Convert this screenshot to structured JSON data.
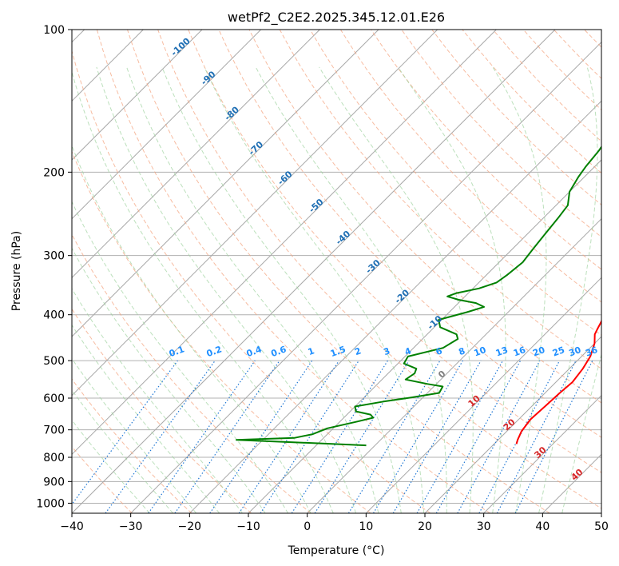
{
  "chart_data": {
    "type": "line",
    "title": "wetPf2_C2E2.2025.345.12.01.E26",
    "xlabel": "Temperature (°C)",
    "ylabel": "Pressure (hPa)",
    "xlim": [
      -40,
      50
    ],
    "ylim": [
      1050,
      100
    ],
    "y_scale": "log",
    "grid": true,
    "x_ticks": [
      "−40",
      "−30",
      "−20",
      "−10",
      "0",
      "10",
      "20",
      "30",
      "40",
      "50"
    ],
    "y_ticks": [
      {
        "p": 1000,
        "label": "1000"
      },
      {
        "p": 900,
        "label": "900"
      },
      {
        "p": 800,
        "label": "800"
      },
      {
        "p": 700,
        "label": "700"
      },
      {
        "p": 600,
        "label": "600"
      },
      {
        "p": 500,
        "label": "500"
      },
      {
        "p": 400,
        "label": "400"
      },
      {
        "p": 300,
        "label": "300"
      },
      {
        "p": 200,
        "label": "200"
      },
      {
        "p": 100,
        "label": "100"
      }
    ],
    "isotherm_labels": [
      {
        "t": -100,
        "label": "-100"
      },
      {
        "t": -90,
        "label": "-90"
      },
      {
        "t": -80,
        "label": "-80"
      },
      {
        "t": -70,
        "label": "-70"
      },
      {
        "t": -60,
        "label": "-60"
      },
      {
        "t": -50,
        "label": "-50"
      },
      {
        "t": -40,
        "label": "-40"
      },
      {
        "t": -30,
        "label": "-30"
      },
      {
        "t": -20,
        "label": "-20"
      },
      {
        "t": -10,
        "label": "-10"
      }
    ],
    "isotherm_labels_warm": [
      {
        "t": 0,
        "label": "0",
        "color": "#808080"
      },
      {
        "t": 10,
        "label": "10",
        "color": "#d62728"
      },
      {
        "t": 20,
        "label": "20",
        "color": "#d62728"
      },
      {
        "t": 30,
        "label": "30",
        "color": "#d62728"
      },
      {
        "t": 40,
        "label": "40",
        "color": "#d62728"
      }
    ],
    "mixing_ratio_labels": [
      "0.1",
      "0.2",
      "0.4",
      "0.6",
      "1",
      "1.5",
      "2",
      "3",
      "4",
      "6",
      "8",
      "10",
      "13",
      "16",
      "20",
      "25",
      "30",
      "36"
    ],
    "mixing_ratio_values": [
      0.1,
      0.2,
      0.4,
      0.6,
      1,
      1.5,
      2,
      3,
      4,
      6,
      8,
      10,
      13,
      16,
      20,
      25,
      30,
      36
    ],
    "series": [
      {
        "color": "#ff0000",
        "points": [
          [
            23.8,
            750
          ],
          [
            23.3,
            735
          ],
          [
            22.5,
            705
          ],
          [
            22.0,
            665
          ],
          [
            22.3,
            620
          ],
          [
            22.5,
            585
          ],
          [
            22.8,
            555
          ],
          [
            22.3,
            520
          ],
          [
            21.5,
            490
          ],
          [
            20.0,
            460
          ],
          [
            18.5,
            440
          ],
          [
            18.0,
            428
          ],
          [
            17.5,
            415
          ],
          [
            16.5,
            395
          ],
          [
            15.0,
            375
          ],
          [
            13.0,
            350
          ],
          [
            11.0,
            325
          ],
          [
            9.0,
            300
          ],
          [
            7.0,
            280
          ],
          [
            6.0,
            265
          ],
          [
            5.0,
            250
          ],
          [
            4.0,
            235
          ],
          [
            3.0,
            220
          ],
          [
            1.5,
            200
          ],
          [
            0.5,
            185
          ],
          [
            -0.5,
            170
          ],
          [
            -1.3,
            155
          ],
          [
            -1.8,
            140
          ],
          [
            -1.5,
            130
          ],
          [
            0.0,
            122
          ],
          [
            1.0,
            115
          ],
          [
            1.8,
            108
          ],
          [
            2.5,
            100
          ]
        ]
      },
      {
        "color": "#008000",
        "points": [
          [
            -1.5,
            755
          ],
          [
            -24.5,
            735
          ],
          [
            -15.0,
            728
          ],
          [
            -12.5,
            715
          ],
          [
            -11.0,
            695
          ],
          [
            -7.0,
            672
          ],
          [
            -5.0,
            660
          ],
          [
            -6.0,
            650
          ],
          [
            -9.0,
            640
          ],
          [
            -10.0,
            625
          ],
          [
            -6.0,
            610
          ],
          [
            -2.0,
            598
          ],
          [
            2.0,
            585
          ],
          [
            1.5,
            567
          ],
          [
            -1.5,
            560
          ],
          [
            -6.0,
            548
          ],
          [
            -5.5,
            532
          ],
          [
            -6.0,
            520
          ],
          [
            -9.0,
            507
          ],
          [
            -9.5,
            490
          ],
          [
            -5.0,
            470
          ],
          [
            -4.0,
            450
          ],
          [
            -5.0,
            440
          ],
          [
            -9.0,
            425
          ],
          [
            -10.5,
            410
          ],
          [
            -7.0,
            395
          ],
          [
            -5.0,
            385
          ],
          [
            -7.0,
            378
          ],
          [
            -10.5,
            372
          ],
          [
            -13.0,
            366
          ],
          [
            -12.0,
            360
          ],
          [
            -9.0,
            352
          ],
          [
            -7.0,
            342
          ],
          [
            -6.5,
            330
          ],
          [
            -6.0,
            310
          ],
          [
            -6.5,
            290
          ],
          [
            -7.0,
            270
          ],
          [
            -7.5,
            250
          ],
          [
            -8.0,
            235
          ],
          [
            -10.0,
            220
          ],
          [
            -11.0,
            205
          ],
          [
            -11.5,
            195
          ],
          [
            -12.0,
            180
          ],
          [
            -13.0,
            165
          ],
          [
            -13.5,
            150
          ],
          [
            -12.5,
            140
          ],
          [
            -10.5,
            132
          ],
          [
            -8.0,
            127
          ],
          [
            -5.5,
            124
          ],
          [
            -4.0,
            120
          ],
          [
            -3.5,
            115
          ],
          [
            -4.0,
            110
          ],
          [
            -4.5,
            104
          ],
          [
            -5.0,
            100
          ]
        ]
      }
    ]
  }
}
